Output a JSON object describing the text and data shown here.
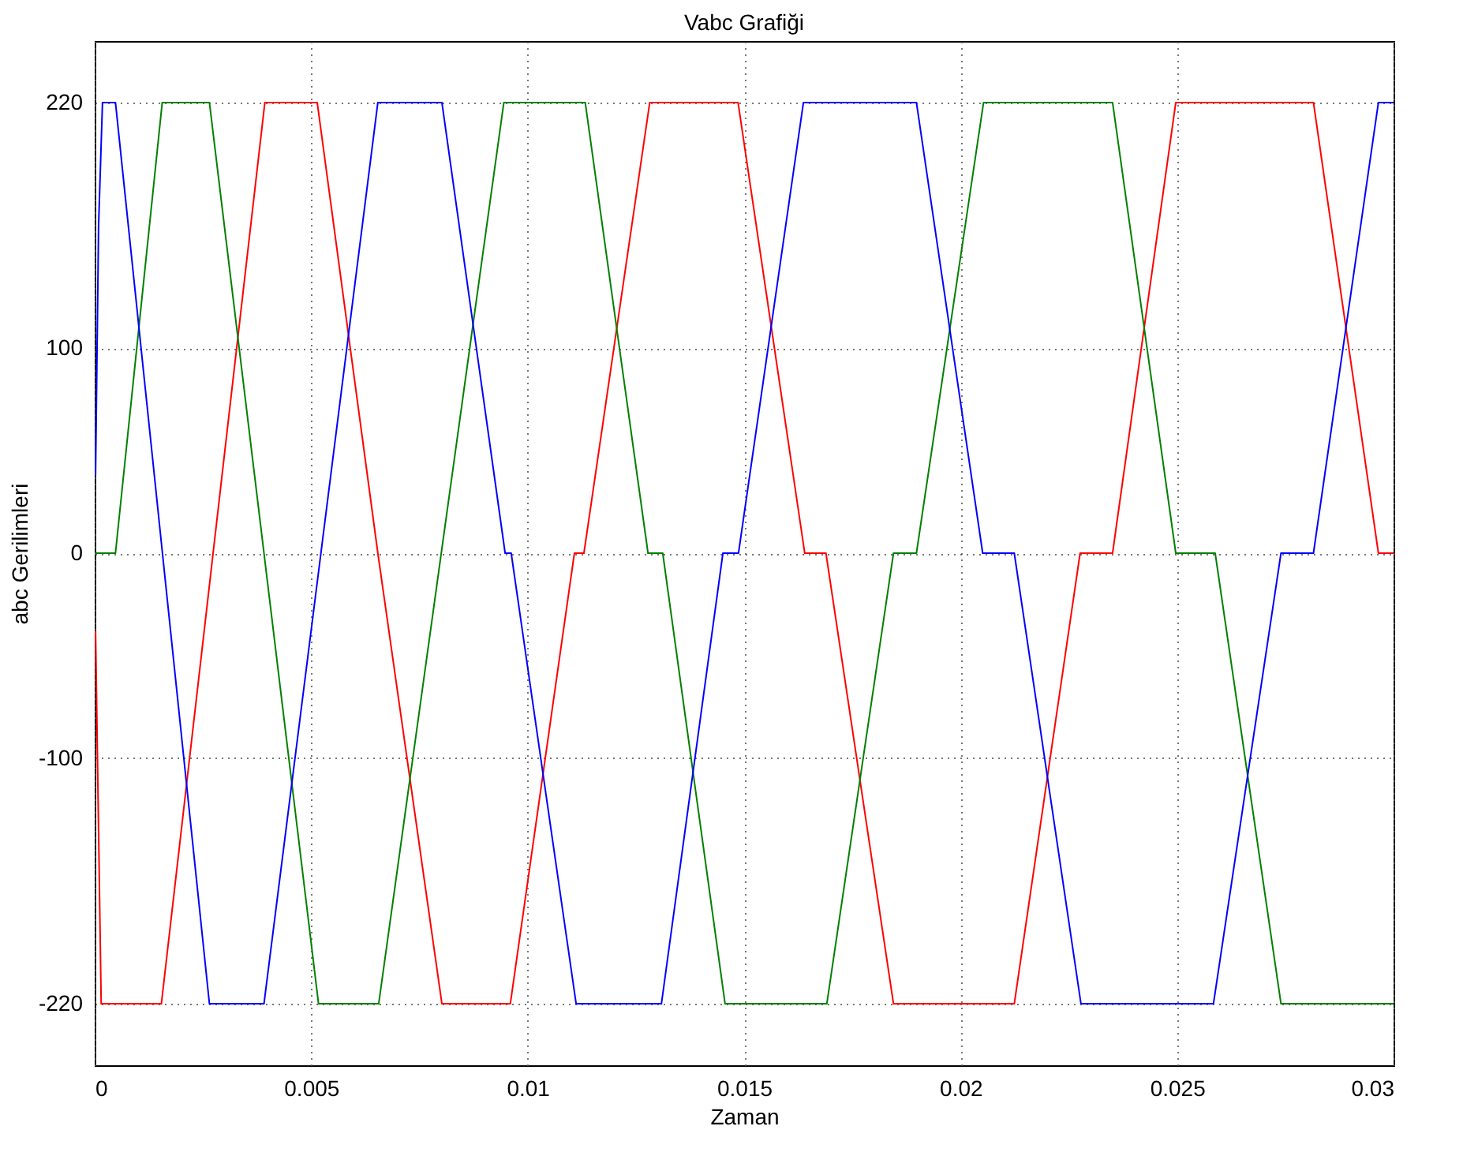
{
  "chart_data": {
    "type": "line",
    "title": "Vabc Grafiği",
    "xlabel": "Zaman",
    "ylabel": "abc Gerilimleri",
    "xlim": [
      0,
      0.03
    ],
    "xticks": [
      0,
      0.005,
      0.01,
      0.015,
      0.02,
      0.025,
      0.03
    ],
    "ylim": [
      -250,
      250
    ],
    "yticks": [
      -220,
      -100,
      0,
      100,
      220
    ],
    "grid": true,
    "line_style": "solid",
    "series": [
      {
        "color": "#ff0000",
        "x": [
          2e-05,
          0.00015,
          0.00154,
          0.00393,
          0.00514,
          0.00654,
          0.00802,
          0.0096,
          0.01108,
          0.0113,
          0.01282,
          0.01486,
          0.0164,
          0.01689,
          0.01845,
          0.02124,
          0.02276,
          0.02351,
          0.02497,
          0.02815,
          0.02965,
          0.03
        ],
        "values": [
          -38,
          -220,
          -220,
          220,
          220,
          0,
          -220,
          -220,
          0,
          0,
          220,
          220,
          0,
          0,
          -220,
          -220,
          0,
          0,
          220,
          220,
          0,
          0
        ]
      },
      {
        "color": "#008000",
        "x": [
          0,
          0.00048,
          0.00156,
          0.00265,
          0.00517,
          0.00656,
          0.00945,
          0.01133,
          0.01278,
          0.01312,
          0.01456,
          0.01691,
          0.01845,
          0.01898,
          0.02053,
          0.02351,
          0.02497,
          0.02588,
          0.0274,
          0.03
        ],
        "values": [
          0,
          0,
          220,
          220,
          -220,
          -220,
          220,
          220,
          0,
          0,
          -220,
          -220,
          0,
          0,
          220,
          220,
          0,
          0,
          -220,
          -220
        ]
      },
      {
        "color": "#0000ff",
        "x": [
          2e-05,
          9e-05,
          0.00018,
          0.00048,
          0.00265,
          0.00391,
          0.00654,
          0.00802,
          0.00948,
          0.00962,
          0.01112,
          0.01309,
          0.01451,
          0.01487,
          0.01637,
          0.01898,
          0.02051,
          0.02124,
          0.02278,
          0.02584,
          0.0274,
          0.02815,
          0.02965,
          0.03
        ],
        "values": [
          38,
          160,
          220,
          220,
          -220,
          -220,
          220,
          220,
          0,
          0,
          -220,
          -220,
          0,
          0,
          220,
          220,
          0,
          0,
          -220,
          -220,
          0,
          0,
          220,
          220
        ]
      }
    ]
  }
}
